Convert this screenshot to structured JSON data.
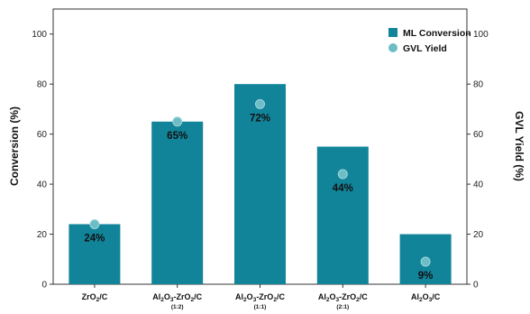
{
  "chart_data": {
    "type": "bar",
    "categories": [
      {
        "parts": [
          [
            "ZrO",
            ""
          ],
          [
            "2",
            "sub"
          ],
          [
            "/C",
            ""
          ]
        ],
        "sub": ""
      },
      {
        "parts": [
          [
            "Al",
            ""
          ],
          [
            "2",
            "sub"
          ],
          [
            "O",
            ""
          ],
          [
            "3",
            "sub"
          ],
          [
            "-ZrO",
            ""
          ],
          [
            "2",
            "sub"
          ],
          [
            "/C",
            ""
          ]
        ],
        "sub": "(1:2)"
      },
      {
        "parts": [
          [
            "Al",
            ""
          ],
          [
            "2",
            "sub"
          ],
          [
            "O",
            ""
          ],
          [
            "3",
            "sub"
          ],
          [
            "-ZrO",
            ""
          ],
          [
            "2",
            "sub"
          ],
          [
            "/C",
            ""
          ]
        ],
        "sub": "(1:1)"
      },
      {
        "parts": [
          [
            "Al",
            ""
          ],
          [
            "2",
            "sub"
          ],
          [
            "O",
            ""
          ],
          [
            "3",
            "sub"
          ],
          [
            "-ZrO",
            ""
          ],
          [
            "2",
            "sub"
          ],
          [
            "/C",
            ""
          ]
        ],
        "sub": "(2:1)"
      },
      {
        "parts": [
          [
            "Al",
            ""
          ],
          [
            "2",
            "sub"
          ],
          [
            "O",
            ""
          ],
          [
            "3",
            "sub"
          ],
          [
            "/C",
            ""
          ]
        ],
        "sub": ""
      }
    ],
    "series": [
      {
        "name": "ML Conversion",
        "kind": "bar",
        "axis": "left",
        "color": "#12849a",
        "values": [
          24,
          65,
          80,
          55,
          20
        ]
      },
      {
        "name": "GVL Yield",
        "kind": "point",
        "axis": "right",
        "color": "#6cbdc6",
        "values": [
          24,
          65,
          72,
          44,
          9
        ],
        "labels": [
          "24%",
          "65%",
          "72%",
          "44%",
          "9%"
        ]
      }
    ],
    "ylabel": "Conversion (%)",
    "y2label": "GVL Yield (%)",
    "ylim": [
      0,
      110
    ],
    "y2lim": [
      0,
      110
    ],
    "yticks": [
      "0",
      "20",
      "40",
      "60",
      "80",
      "100"
    ],
    "y2ticks": [
      "0",
      "20",
      "40",
      "60",
      "80",
      "100"
    ],
    "legend": "top-right",
    "grid": false
  }
}
